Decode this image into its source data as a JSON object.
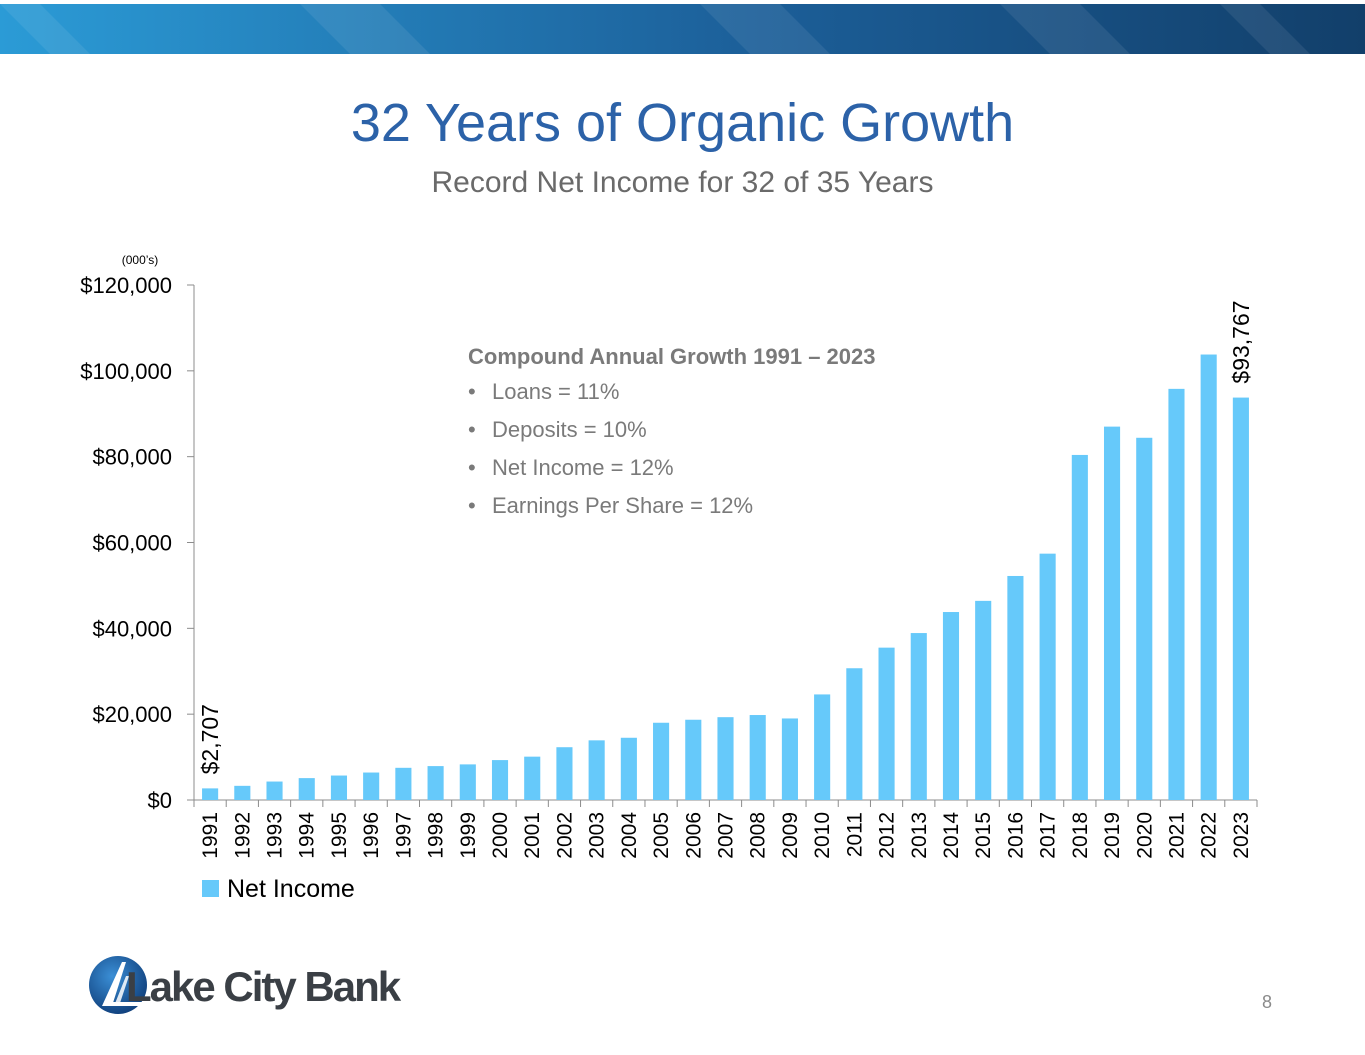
{
  "slide": {
    "title": "32 Years of Organic Growth",
    "subtitle": "Record Net Income for 32 of 35 Years",
    "page_number": "8",
    "banner_colors": [
      "#2b9bd6",
      "#1c5f99",
      "#123f6a"
    ],
    "logo_text": "Lake City Bank"
  },
  "cagr": {
    "title": "Compound Annual Growth 1991 – 2023",
    "items": [
      {
        "label": "Loans = 11%"
      },
      {
        "label": "Deposits = 10%"
      },
      {
        "label": "Net Income = 12%"
      },
      {
        "label": "Earnings Per Share = 12%"
      }
    ]
  },
  "chart_data": {
    "type": "bar",
    "units_note": "(000’s)",
    "categories": [
      "1991",
      "1992",
      "1993",
      "1994",
      "1995",
      "1996",
      "1997",
      "1998",
      "1999",
      "2000",
      "2001",
      "2002",
      "2003",
      "2004",
      "2005",
      "2006",
      "2007",
      "2008",
      "2009",
      "2010",
      "2011",
      "2012",
      "2013",
      "2014",
      "2015",
      "2016",
      "2017",
      "2018",
      "2019",
      "2020",
      "2021",
      "2022",
      "2023"
    ],
    "series": [
      {
        "name": "Net Income",
        "color": "#66c9fa",
        "values": [
          2707,
          3300,
          4300,
          5100,
          5700,
          6400,
          7500,
          7900,
          8300,
          9300,
          10100,
          12300,
          13900,
          14500,
          18000,
          18700,
          19300,
          19800,
          19000,
          24600,
          30700,
          35500,
          38900,
          43800,
          46400,
          52200,
          57400,
          80400,
          87000,
          84400,
          95800,
          103800,
          93767
        ]
      }
    ],
    "data_labels": [
      {
        "category": "1991",
        "text": "$2,707"
      },
      {
        "category": "2023",
        "text": "$93,767"
      }
    ],
    "y_ticks": [
      "$0",
      "$20,000",
      "$40,000",
      "$60,000",
      "$80,000",
      "$100,000",
      "$120,000"
    ],
    "ylim": [
      0,
      120000
    ],
    "legend": "bottom-left",
    "grid": false
  }
}
